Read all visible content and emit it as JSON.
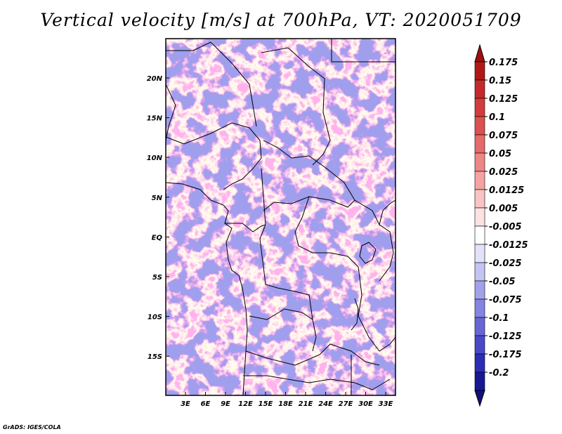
{
  "title": "Vertical velocity [m/s] at 700hPa, VT: 2020051709",
  "credit": "GrADS: IGES/COLA",
  "map": {
    "region": "Central Africa",
    "lat_labels": [
      "20N",
      "15N",
      "10N",
      "5N",
      "EQ",
      "5S",
      "10S",
      "15S"
    ],
    "lon_labels": [
      "3E",
      "6E",
      "9E",
      "12E",
      "15E",
      "18E",
      "21E",
      "24E",
      "27E",
      "30E",
      "33E"
    ],
    "lat_range": [
      -20,
      25
    ],
    "lon_range": [
      0,
      35
    ]
  },
  "colorbar": {
    "labels": [
      "0.175",
      "0.15",
      "0.125",
      "0.1",
      "0.075",
      "0.05",
      "0.025",
      "0.0125",
      "0.005",
      "-0.005",
      "-0.0125",
      "-0.025",
      "-0.05",
      "-0.075",
      "-0.1",
      "-0.125",
      "-0.175",
      "-0.2"
    ],
    "colors": [
      "#b01818",
      "#c42a2a",
      "#d23c3c",
      "#dc5050",
      "#e66a6a",
      "#ee8686",
      "#f4a2a2",
      "#f9c4c4",
      "#fde2e2",
      "#ffffff",
      "#e2e2fb",
      "#c4c4f4",
      "#a2a2ec",
      "#8484e2",
      "#6666d6",
      "#4848c8",
      "#2c2cb4",
      "#181896"
    ],
    "top_arrow_color": "#a01010",
    "bottom_arrow_color": "#10107e"
  }
}
